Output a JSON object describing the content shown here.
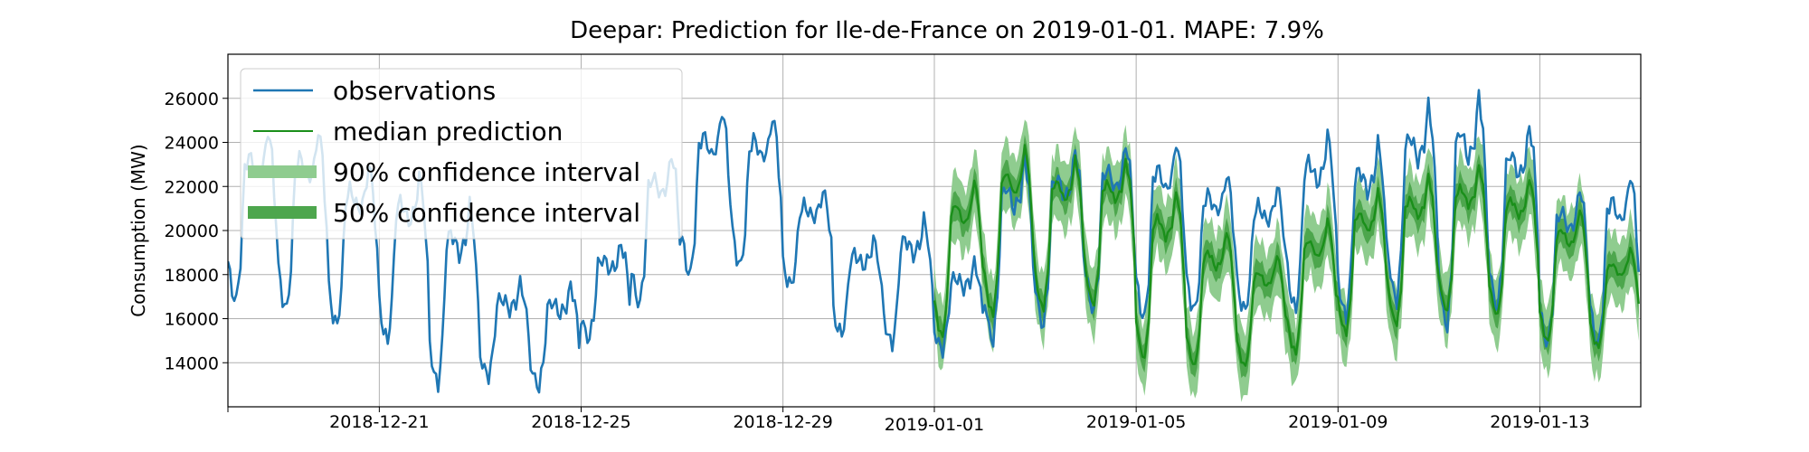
{
  "chart_data": {
    "type": "line",
    "title": "Deepar: Prediction for Ile-de-France on 2019-01-01. MAPE: 7.9%",
    "xlabel": "",
    "ylabel": "Consumption (MW)",
    "xlim": [
      "2018-12-18",
      "2019-01-15"
    ],
    "ylim": [
      12000,
      28000
    ],
    "grid": true,
    "legend_position": "upper-left",
    "x_ticks": [
      "2018-12-21",
      "2018-12-25",
      "2018-12-29",
      "2019-01-01",
      "2019-01-05",
      "2019-01-09",
      "2019-01-13"
    ],
    "y_ticks": [
      14000,
      16000,
      18000,
      20000,
      22000,
      24000,
      26000
    ],
    "colors": {
      "observations": "#1f77b4",
      "median": "#1a8f1a",
      "ci90": "#8fcc8f",
      "ci50": "#4da64d"
    },
    "series": [
      {
        "name": "observations",
        "x": [
          "2018-12-18",
          "2018-12-19",
          "2018-12-20",
          "2018-12-21",
          "2018-12-22",
          "2018-12-23",
          "2018-12-24",
          "2018-12-25",
          "2018-12-26",
          "2018-12-27",
          "2018-12-28",
          "2018-12-29",
          "2018-12-30",
          "2018-12-31",
          "2019-01-01",
          "2019-01-02",
          "2019-01-03",
          "2019-01-04",
          "2019-01-05",
          "2019-01-06",
          "2019-01-07",
          "2019-01-08",
          "2019-01-09",
          "2019-01-10",
          "2019-01-11",
          "2019-01-12",
          "2019-01-13",
          "2019-01-14"
        ],
        "peak": [
          24600,
          24600,
          23000,
          22500,
          21200,
          17600,
          17500,
          19400,
          23500,
          25500,
          25200,
          21800,
          19600,
          20500,
          18500,
          23300,
          23700,
          24000,
          24100,
          22600,
          22000,
          24400,
          24000,
          25700,
          26200,
          24800,
          22000,
          22600
        ],
        "trough": [
          16600,
          16200,
          15500,
          14800,
          12800,
          13300,
          12800,
          15000,
          16500,
          17800,
          18200,
          17400,
          15200,
          14700,
          14500,
          14800,
          15500,
          16200,
          15800,
          16200,
          16200,
          16200,
          15900,
          16600,
          15400,
          16300,
          14700,
          14600
        ]
      },
      {
        "name": "median prediction",
        "x": [
          "2019-01-01",
          "2019-01-02",
          "2019-01-03",
          "2019-01-04",
          "2019-01-05",
          "2019-01-06",
          "2019-01-07",
          "2019-01-08",
          "2019-01-09",
          "2019-01-10",
          "2019-01-11",
          "2019-01-12",
          "2019-01-13",
          "2019-01-14"
        ],
        "peak": [
          22300,
          23800,
          23300,
          23200,
          21800,
          20000,
          18900,
          20500,
          21800,
          22500,
          23000,
          22400,
          21000,
          19200
        ],
        "trough": [
          15000,
          16000,
          16300,
          16500,
          14000,
          13700,
          13700,
          14300,
          15200,
          15600,
          16200,
          16000,
          14800,
          14600
        ]
      }
    ],
    "legend": [
      {
        "key": "observations",
        "label": "observations"
      },
      {
        "key": "median",
        "label": "median prediction"
      },
      {
        "key": "ci90",
        "label": "90% confidence interval"
      },
      {
        "key": "ci50",
        "label": "50% confidence interval"
      }
    ]
  }
}
